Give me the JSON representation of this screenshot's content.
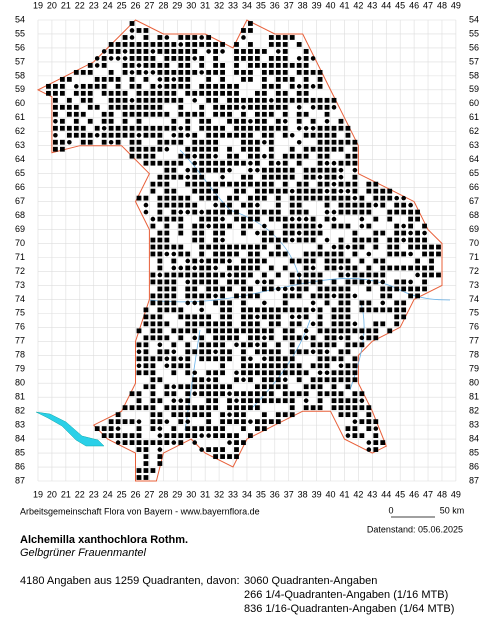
{
  "map": {
    "columns": [
      19,
      20,
      21,
      22,
      23,
      24,
      25,
      26,
      27,
      28,
      29,
      30,
      31,
      32,
      33,
      34,
      35,
      36,
      37,
      38,
      39,
      40,
      41,
      42,
      43,
      44,
      45,
      46,
      47,
      48,
      49
    ],
    "rows": [
      54,
      55,
      56,
      57,
      58,
      59,
      60,
      61,
      62,
      63,
      64,
      65,
      66,
      67,
      68,
      69,
      70,
      71,
      72,
      73,
      74,
      75,
      76,
      77,
      78,
      79,
      80,
      81,
      82,
      83,
      84,
      85,
      86,
      87
    ]
  },
  "footer": {
    "credit": "Arbeitsgemeinschaft Flora von Bayern - www.bayernflora.de",
    "scale_start": "0",
    "scale_end": "50 km",
    "date": "Datenstand: 05.06.2025",
    "title": "Alchemilla xanthochlora Rothm.",
    "subtitle": "Gelbgrüner Frauenmantel",
    "summary": "4180 Angaben aus 1259 Quadranten, davon:",
    "breakdown": [
      "3060 Quadranten-Angaben",
      "266 1/4-Quadranten-Angaben (1/16 MTB)",
      "836 1/16-Quadranten-Angaben (1/64 MTB)"
    ]
  }
}
